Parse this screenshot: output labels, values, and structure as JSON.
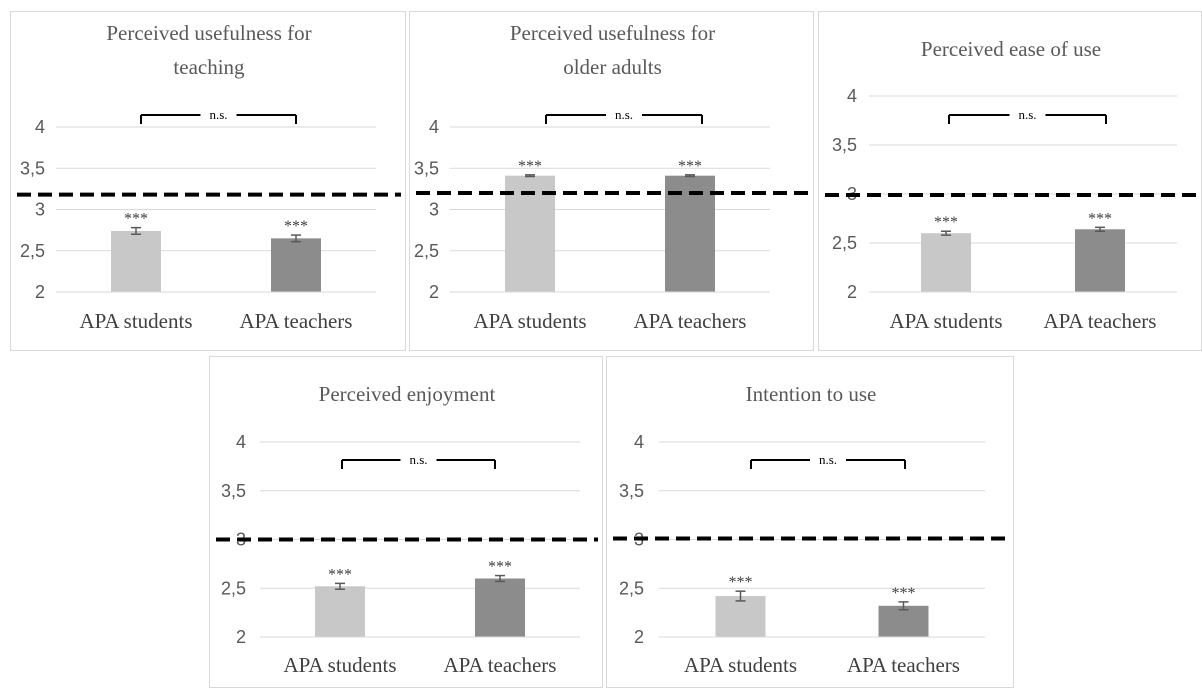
{
  "chart_data": [
    {
      "type": "bar",
      "title": [
        "Perceived usefulness for",
        "teaching"
      ],
      "categories": [
        "APA students",
        "APA teachers"
      ],
      "values": [
        2.74,
        2.65
      ],
      "errors": [
        0.04,
        0.04
      ],
      "significance": [
        "***",
        "***"
      ],
      "comparison_label": "n.s.",
      "reference_line": 3.18,
      "yticks": [
        "2",
        "2,5",
        "3",
        "3,5",
        "4"
      ],
      "ylim": [
        2,
        4
      ],
      "bar_colors": [
        "#c8c8c8",
        "#8c8c8c"
      ]
    },
    {
      "type": "bar",
      "title": [
        "Perceived usefulness for",
        "older adults"
      ],
      "categories": [
        "APA students",
        "APA teachers"
      ],
      "values": [
        3.41,
        3.41
      ],
      "errors": [
        0.01,
        0.01
      ],
      "significance": [
        "***",
        "***"
      ],
      "comparison_label": "n.s.",
      "reference_line": 3.2,
      "yticks": [
        "2",
        "2,5",
        "3",
        "3,5",
        "4"
      ],
      "ylim": [
        2,
        4
      ],
      "bar_colors": [
        "#c8c8c8",
        "#8c8c8c"
      ]
    },
    {
      "type": "bar",
      "title": [
        "Perceived ease of use"
      ],
      "categories": [
        "APA students",
        "APA teachers"
      ],
      "values": [
        2.6,
        2.64
      ],
      "errors": [
        0.02,
        0.02
      ],
      "significance": [
        "***",
        "***"
      ],
      "comparison_label": "n.s.",
      "reference_line": 2.99,
      "yticks": [
        "2",
        "2,5",
        "3",
        "3,5",
        "4"
      ],
      "ylim": [
        2,
        4
      ],
      "bar_colors": [
        "#c8c8c8",
        "#8c8c8c"
      ]
    },
    {
      "type": "bar",
      "title": [
        "Perceived enjoyment"
      ],
      "categories": [
        "APA students",
        "APA teachers"
      ],
      "values": [
        2.52,
        2.6
      ],
      "errors": [
        0.03,
        0.03
      ],
      "significance": [
        "***",
        "***"
      ],
      "comparison_label": "n.s.",
      "reference_line": 3.0,
      "yticks": [
        "2",
        "2,5",
        "3",
        "3,5",
        "4"
      ],
      "ylim": [
        2,
        4
      ],
      "bar_colors": [
        "#c8c8c8",
        "#8c8c8c"
      ]
    },
    {
      "type": "bar",
      "title": [
        "Intention to use"
      ],
      "categories": [
        "APA students",
        "APA teachers"
      ],
      "values": [
        2.42,
        2.32
      ],
      "errors": [
        0.05,
        0.04
      ],
      "significance": [
        "***",
        "***"
      ],
      "comparison_label": "n.s.",
      "reference_line": 3.01,
      "yticks": [
        "2",
        "2,5",
        "3",
        "3,5",
        "4"
      ],
      "ylim": [
        2,
        4
      ],
      "bar_colors": [
        "#c8c8c8",
        "#8c8c8c"
      ]
    }
  ]
}
